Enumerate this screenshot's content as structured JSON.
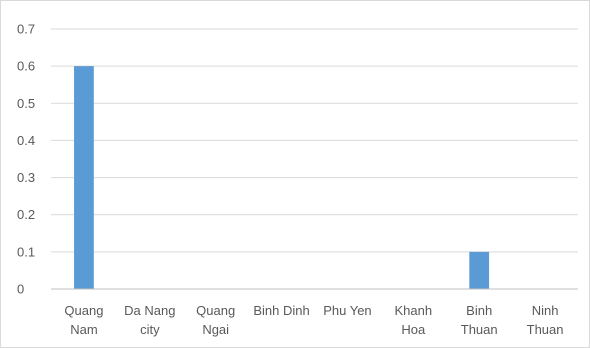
{
  "chart_data": {
    "type": "bar",
    "title": "",
    "xlabel": "",
    "ylabel": "",
    "categories": [
      [
        "Quang",
        "Nam"
      ],
      [
        "Da Nang",
        "city"
      ],
      [
        "Quang",
        "Ngai"
      ],
      [
        "Binh Dinh"
      ],
      [
        "Phu Yen"
      ],
      [
        "Khanh",
        "Hoa"
      ],
      [
        "Binh",
        "Thuan"
      ],
      [
        "Ninh",
        "Thuan"
      ]
    ],
    "values": [
      0.6,
      0,
      0,
      0,
      0,
      0,
      0.1,
      0
    ],
    "ylim": [
      0,
      0.7
    ],
    "yticks": [
      "0",
      "0.1",
      "0.2",
      "0.3",
      "0.4",
      "0.5",
      "0.6",
      "0.7"
    ],
    "grid": true,
    "legend": "none",
    "colors": {
      "bar": "#5b9bd5",
      "grid": "#d9d9d9",
      "axis": "#bfbfbf",
      "text": "#595959"
    }
  }
}
